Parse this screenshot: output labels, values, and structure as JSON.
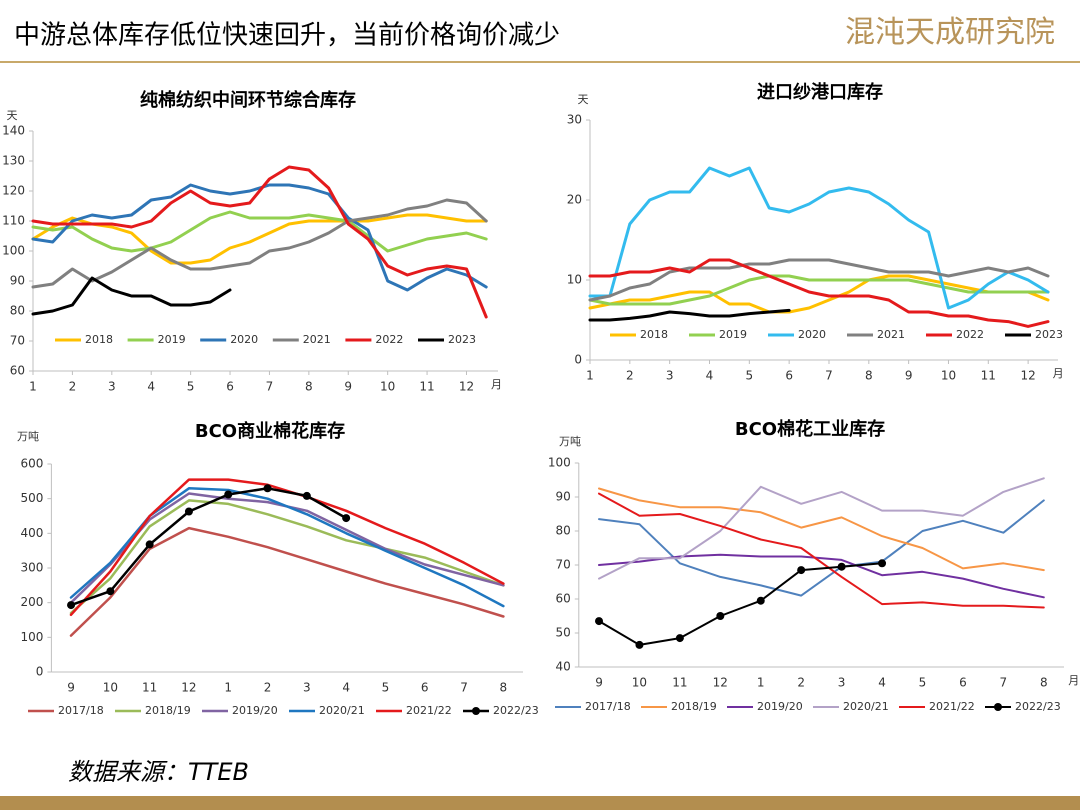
{
  "header": {
    "title": "中游总体库存低位快速回升，当前价格询价减少",
    "logo": "混沌天成研究院"
  },
  "footer": {
    "source": "数据来源：TTEB"
  },
  "chart_data": [
    {
      "type": "line",
      "title": "纯棉纺织中间环节综合库存",
      "ylabel": "天",
      "xlabel": "月",
      "x": [
        1,
        1.5,
        2,
        2.5,
        3,
        3.5,
        4,
        4.5,
        5,
        5.5,
        6,
        6.5,
        7,
        7.5,
        8,
        8.5,
        9,
        9.5,
        10,
        10.5,
        11,
        11.5,
        12,
        12.5
      ],
      "xlim": [
        1,
        12.8
      ],
      "xticks": [
        1,
        2,
        3,
        4,
        5,
        6,
        7,
        8,
        9,
        10,
        11,
        12
      ],
      "ylim": [
        60,
        140
      ],
      "yticks": [
        60,
        70,
        80,
        90,
        100,
        110,
        120,
        130,
        140
      ],
      "grid": false,
      "series": [
        {
          "name": "2018",
          "color": "#ffc000",
          "values": [
            104,
            108,
            111,
            109,
            108,
            106,
            100,
            96,
            96,
            97,
            101,
            103,
            106,
            109,
            110,
            110,
            110,
            110,
            111,
            112,
            112,
            111,
            110,
            110
          ]
        },
        {
          "name": "2019",
          "color": "#92d050",
          "values": [
            108,
            107,
            108,
            104,
            101,
            100,
            101,
            103,
            107,
            111,
            113,
            111,
            111,
            111,
            112,
            111,
            110,
            105,
            100,
            102,
            104,
            105,
            106,
            104
          ]
        },
        {
          "name": "2020",
          "color": "#2e75b6",
          "values": [
            104,
            103,
            110,
            112,
            111,
            112,
            117,
            118,
            122,
            120,
            119,
            120,
            122,
            122,
            121,
            119,
            111,
            107,
            90,
            87,
            91,
            94,
            92,
            88
          ]
        },
        {
          "name": "2021",
          "color": "#808080",
          "values": [
            88,
            89,
            94,
            90,
            93,
            97,
            101,
            97,
            94,
            94,
            95,
            96,
            100,
            101,
            103,
            106,
            110,
            111,
            112,
            114,
            115,
            117,
            116,
            110
          ]
        },
        {
          "name": "2022",
          "color": "#e41a1c",
          "values": [
            110,
            109,
            109,
            109,
            109,
            108,
            110,
            116,
            120,
            116,
            115,
            116,
            124,
            128,
            127,
            121,
            109,
            104,
            95,
            92,
            94,
            95,
            94,
            78
          ]
        },
        {
          "name": "2023",
          "color": "#000000",
          "values": [
            79,
            80,
            82,
            91,
            87,
            85,
            85,
            82,
            82,
            83,
            87,
            null,
            null,
            null,
            null,
            null,
            null,
            null,
            null,
            null,
            null,
            null,
            null,
            null
          ]
        }
      ]
    },
    {
      "type": "line",
      "title": "进口纱港口库存",
      "ylabel": "天",
      "xlabel": "月",
      "x": [
        1,
        1.5,
        2,
        2.5,
        3,
        3.5,
        4,
        4.5,
        5,
        5.5,
        6,
        6.5,
        7,
        7.5,
        8,
        8.5,
        9,
        9.5,
        10,
        10.5,
        11,
        11.5,
        12,
        12.5
      ],
      "xlim": [
        1,
        12.75
      ],
      "xticks": [
        1,
        2,
        3,
        4,
        5,
        6,
        7,
        8,
        9,
        10,
        11,
        12
      ],
      "ylim": [
        0,
        30
      ],
      "yticks": [
        0,
        10,
        20,
        30
      ],
      "grid": false,
      "series": [
        {
          "name": "2018",
          "color": "#ffc000",
          "values": [
            6.5,
            7,
            7.5,
            7.5,
            8,
            8.5,
            8.5,
            7,
            7,
            6,
            6,
            6.5,
            7.5,
            8.5,
            10,
            10.5,
            10.5,
            10,
            9.5,
            9,
            8.5,
            8.5,
            8.5,
            7.5
          ]
        },
        {
          "name": "2019",
          "color": "#92d050",
          "values": [
            7.5,
            7,
            7,
            7,
            7,
            7.5,
            8,
            9,
            10,
            10.5,
            10.5,
            10,
            10,
            10,
            10,
            10,
            10,
            9.5,
            9,
            8.5,
            8.5,
            8.5,
            8.5,
            8.5
          ]
        },
        {
          "name": "2020",
          "color": "#33bbee",
          "values": [
            8,
            8,
            17,
            20,
            21,
            21,
            24,
            23,
            24,
            19,
            18.5,
            19.5,
            21,
            21.5,
            21,
            19.5,
            17.5,
            16,
            6.5,
            7.5,
            9.5,
            11,
            10,
            8.5
          ]
        },
        {
          "name": "2021",
          "color": "#808080",
          "values": [
            7.5,
            8,
            9,
            9.5,
            11,
            11.5,
            11.5,
            11.5,
            12,
            12,
            12.5,
            12.5,
            12.5,
            12,
            11.5,
            11,
            11,
            11,
            10.5,
            11,
            11.5,
            11,
            11.5,
            10.5
          ]
        },
        {
          "name": "2022",
          "color": "#e41a1c",
          "values": [
            10.5,
            10.5,
            11,
            11,
            11.5,
            11,
            12.5,
            12.5,
            11.5,
            10.5,
            9.5,
            8.5,
            8,
            8,
            8,
            7.5,
            6,
            6,
            5.5,
            5.5,
            5,
            4.8,
            4.2,
            4.8
          ]
        },
        {
          "name": "2023",
          "color": "#000000",
          "values": [
            5,
            5,
            5.2,
            5.5,
            6,
            5.8,
            5.5,
            5.5,
            5.8,
            6,
            6.2,
            null,
            null,
            null,
            null,
            null,
            null,
            null,
            null,
            null,
            null,
            null,
            null,
            null
          ]
        }
      ]
    },
    {
      "type": "line",
      "title": "BCO商业棉花库存",
      "ylabel": "万吨",
      "categories": [
        "9",
        "10",
        "11",
        "12",
        "1",
        "2",
        "3",
        "4",
        "5",
        "6",
        "7",
        "8"
      ],
      "ylim": [
        0,
        600
      ],
      "yticks": [
        0,
        100,
        200,
        300,
        400,
        500,
        600
      ],
      "grid": false,
      "series": [
        {
          "name": "2017/18",
          "color": "#c0504d",
          "values": [
            105,
            215,
            355,
            415,
            390,
            360,
            325,
            290,
            255,
            225,
            195,
            160
          ]
        },
        {
          "name": "2018/19",
          "color": "#9bbb59",
          "values": [
            170,
            270,
            420,
            495,
            485,
            455,
            420,
            380,
            355,
            330,
            290,
            250
          ]
        },
        {
          "name": "2019/20",
          "color": "#8064a2",
          "values": [
            200,
            310,
            440,
            515,
            500,
            490,
            465,
            410,
            355,
            310,
            280,
            250
          ]
        },
        {
          "name": "2020/21",
          "color": "#1f77c0",
          "values": [
            215,
            315,
            450,
            530,
            525,
            500,
            455,
            400,
            350,
            300,
            250,
            190
          ]
        },
        {
          "name": "2021/22",
          "color": "#e41a1c",
          "values": [
            165,
            290,
            450,
            555,
            555,
            540,
            505,
            465,
            415,
            370,
            315,
            255
          ]
        },
        {
          "name": "2022/23",
          "color": "#000000",
          "marker": true,
          "values": [
            193,
            233,
            368,
            463,
            512,
            530,
            508,
            444,
            null,
            null,
            null,
            null
          ]
        }
      ]
    },
    {
      "type": "line",
      "title": "BCO棉花工业库存",
      "ylabel": "万吨",
      "xlabel": "月",
      "categories": [
        "9",
        "10",
        "11",
        "12",
        "1",
        "2",
        "3",
        "4",
        "5",
        "6",
        "7",
        "8"
      ],
      "ylim": [
        40,
        100
      ],
      "yticks": [
        40,
        50,
        60,
        70,
        80,
        90,
        100
      ],
      "grid": false,
      "series": [
        {
          "name": "2017/18",
          "color": "#4f81bd",
          "values": [
            83.5,
            82,
            70.5,
            66.5,
            64,
            61,
            69.5,
            71,
            80,
            83,
            79.5,
            89
          ]
        },
        {
          "name": "2018/19",
          "color": "#f79646",
          "values": [
            92.5,
            89,
            87,
            87,
            85.5,
            81,
            84,
            78.5,
            75,
            69,
            70.5,
            68.5
          ]
        },
        {
          "name": "2019/20",
          "color": "#7030a0",
          "values": [
            70,
            71,
            72.5,
            73,
            72.5,
            72.5,
            71.5,
            67,
            68,
            66,
            63,
            60.5
          ]
        },
        {
          "name": "2020/21",
          "color": "#b3a2c7",
          "values": [
            66,
            72,
            72,
            80,
            93,
            88,
            91.5,
            86,
            86,
            84.5,
            91.5,
            95.5
          ]
        },
        {
          "name": "2021/22",
          "color": "#e41a1c",
          "values": [
            91,
            84.5,
            85,
            81.5,
            77.5,
            75,
            66.5,
            58.5,
            59,
            58,
            58,
            57.5
          ]
        },
        {
          "name": "2022/23",
          "color": "#000000",
          "marker": true,
          "values": [
            53.5,
            46.5,
            48.5,
            55,
            59.5,
            68.5,
            69.5,
            70.5,
            null,
            null,
            null,
            null
          ]
        }
      ]
    }
  ]
}
